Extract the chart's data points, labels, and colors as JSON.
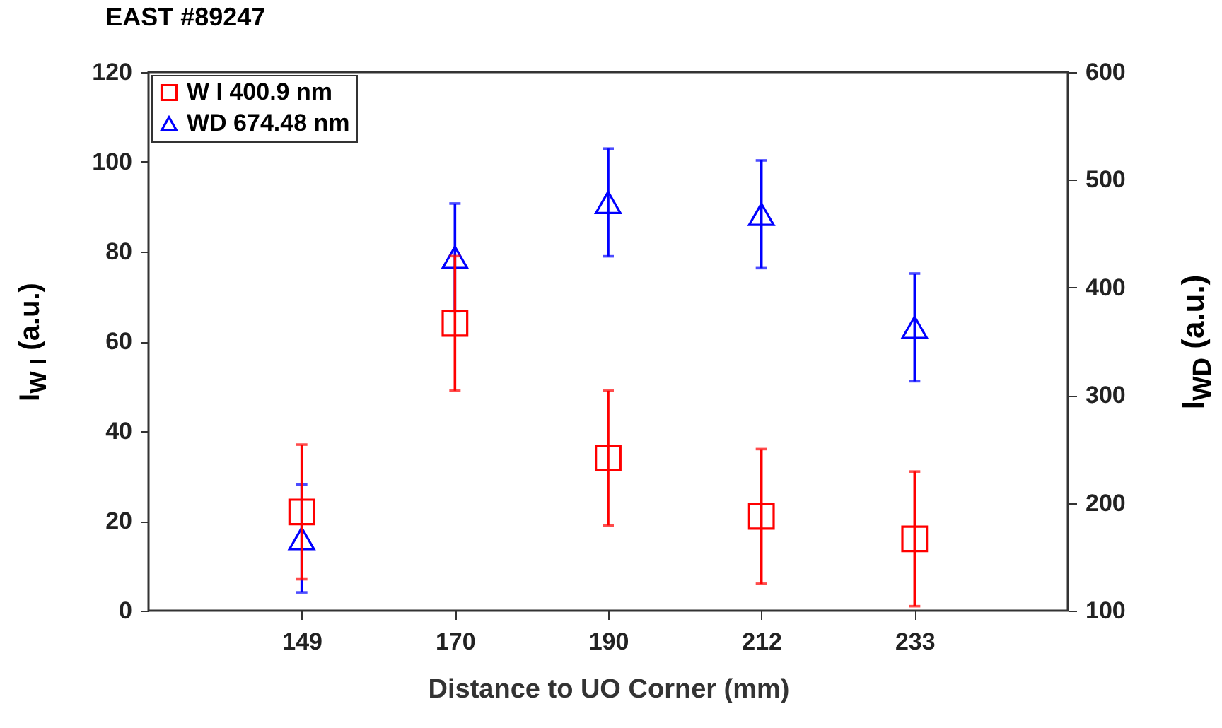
{
  "chart_data": {
    "type": "scatter",
    "title": "EAST #89247",
    "xlabel": "Distance to UO Corner (mm)",
    "ylabel": "I$_{W I}$ (a.u.)",
    "y2label": "I$_{WD}$  (a.u.)",
    "categories": [
      "149",
      "170",
      "190",
      "212",
      "233"
    ],
    "series": [
      {
        "name": "W I 400.9 nm",
        "color": "#ff0000",
        "marker": "square",
        "values": [
          22,
          64,
          34,
          21,
          16
        ],
        "errors": [
          15,
          15,
          15,
          15,
          15
        ]
      },
      {
        "name": "WD 674.48 nm",
        "color": "#0000ff",
        "marker": "triangle",
        "axis": "y2",
        "values": [
          167,
          428,
          479,
          468,
          363
        ],
        "errors": [
          50,
          50,
          50,
          50,
          50
        ]
      }
    ],
    "ylim": [
      0,
      120
    ],
    "yticks": [
      0,
      20,
      40,
      60,
      80,
      100,
      120
    ],
    "y2lim": [
      100,
      600
    ],
    "y2ticks": [
      100,
      200,
      300,
      400,
      500,
      600
    ],
    "grid": false,
    "legend": "top left"
  }
}
